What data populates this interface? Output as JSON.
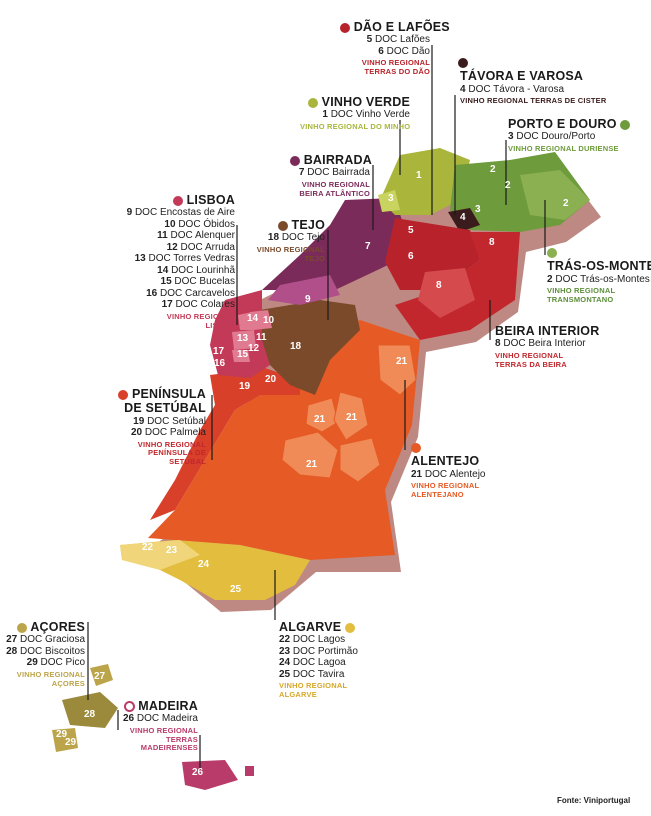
{
  "colors": {
    "vinho_verde": "#a9b63b",
    "douro": "#6e9b3c",
    "tras_os_montes": "#5c8e3a",
    "tavora": "#3a1c1c",
    "dao": "#b8232b",
    "beira_interior": "#c1272d",
    "bairrada": "#7b2b5a",
    "tejo": "#7a4a2b",
    "lisboa": "#c23a57",
    "setubal": "#d8402a",
    "alentejo": "#e55a25",
    "algarve": "#e3bd3d",
    "acores": "#bca44a",
    "madeira": "#b83b6a"
  },
  "regions": [
    {
      "id": "dao",
      "title": "DÃO E LAFÕES",
      "docs": [
        {
          "n": "5",
          "name": "DOC Lafões"
        },
        {
          "n": "6",
          "name": "DOC Dão"
        }
      ],
      "vr": "VINHO REGIONAL TERRAS DO DÃO"
    },
    {
      "id": "tavora",
      "title": "TÁVORA E VAROSA",
      "docs": [
        {
          "n": "4",
          "name": "DOC Távora - Varosa"
        }
      ],
      "vr": "VINHO REGIONAL TERRAS DE CISTER"
    },
    {
      "id": "vinho_verde",
      "title": "VINHO VERDE",
      "docs": [
        {
          "n": "1",
          "name": "DOC Vinho Verde"
        }
      ],
      "vr": "VINHO REGIONAL DO MINHO"
    },
    {
      "id": "douro",
      "title": "PORTO E DOURO",
      "docs": [
        {
          "n": "3",
          "name": "DOC Douro/Porto"
        }
      ],
      "vr": "VINHO REGIONAL DURIENSE"
    },
    {
      "id": "bairrada",
      "title": "BAIRRADA",
      "docs": [
        {
          "n": "7",
          "name": "DOC Bairrada"
        }
      ],
      "vr": "VINHO REGIONAL BEIRA ATLÂNTICO"
    },
    {
      "id": "tejo",
      "title": "TEJO",
      "docs": [
        {
          "n": "18",
          "name": "DOC Tejo"
        }
      ],
      "vr": "VINHO REGIONAL TEJO"
    },
    {
      "id": "lisboa",
      "title": "LISBOA",
      "docs": [
        {
          "n": "9",
          "name": "DOC Encostas de Aire"
        },
        {
          "n": "10",
          "name": "DOC Óbidos"
        },
        {
          "n": "11",
          "name": "DOC Alenquer"
        },
        {
          "n": "12",
          "name": "DOC Arruda"
        },
        {
          "n": "13",
          "name": "DOC Torres Vedras"
        },
        {
          "n": "14",
          "name": "DOC Lourinhã"
        },
        {
          "n": "15",
          "name": "DOC Bucelas"
        },
        {
          "n": "16",
          "name": "DOC Carcavelos"
        },
        {
          "n": "17",
          "name": "DOC Colares"
        }
      ],
      "vr": "VINHO REGIONAL LISBOA"
    },
    {
      "id": "tras_os_montes",
      "title": "TRÁS-OS-MONTES",
      "docs": [
        {
          "n": "2",
          "name": "DOC Trás-os-Montes"
        }
      ],
      "vr": "VINHO REGIONAL TRANSMONTANO"
    },
    {
      "id": "beira_interior",
      "title": "BEIRA INTERIOR",
      "docs": [
        {
          "n": "8",
          "name": "DOC Beira Interior"
        }
      ],
      "vr": "VINHO REGIONAL TERRAS DA BEIRA"
    },
    {
      "id": "setubal",
      "title": "PENÍNSULA DE SETÚBAL",
      "docs": [
        {
          "n": "19",
          "name": "DOC Setúbal"
        },
        {
          "n": "20",
          "name": "DOC Palmela"
        }
      ],
      "vr": "VINHO REGIONAL PENÍNSULA DE SETÚBAL"
    },
    {
      "id": "alentejo",
      "title": "ALENTEJO",
      "docs": [
        {
          "n": "21",
          "name": "DOC Alentejo"
        }
      ],
      "vr": "VINHO REGIONAL ALENTEJANO"
    },
    {
      "id": "algarve",
      "title": "ALGARVE",
      "docs": [
        {
          "n": "22",
          "name": "DOC Lagos"
        },
        {
          "n": "23",
          "name": "DOC Portimão"
        },
        {
          "n": "24",
          "name": "DOC Lagoa"
        },
        {
          "n": "25",
          "name": "DOC Tavira"
        }
      ],
      "vr": "VINHO REGIONAL ALGARVE"
    },
    {
      "id": "acores",
      "title": "AÇORES",
      "docs": [
        {
          "n": "27",
          "name": "DOC Graciosa"
        },
        {
          "n": "28",
          "name": "DOC Biscoitos"
        },
        {
          "n": "29",
          "name": "DOC Pico"
        }
      ],
      "vr": "VINHO REGIONAL AÇORES"
    },
    {
      "id": "madeira",
      "title": "MADEIRA",
      "docs": [
        {
          "n": "26",
          "name": "DOC Madeira"
        }
      ],
      "vr": "VINHO REGIONAL TERRAS MADEIRENSES"
    }
  ],
  "source": "Fonte: Viniportugal"
}
